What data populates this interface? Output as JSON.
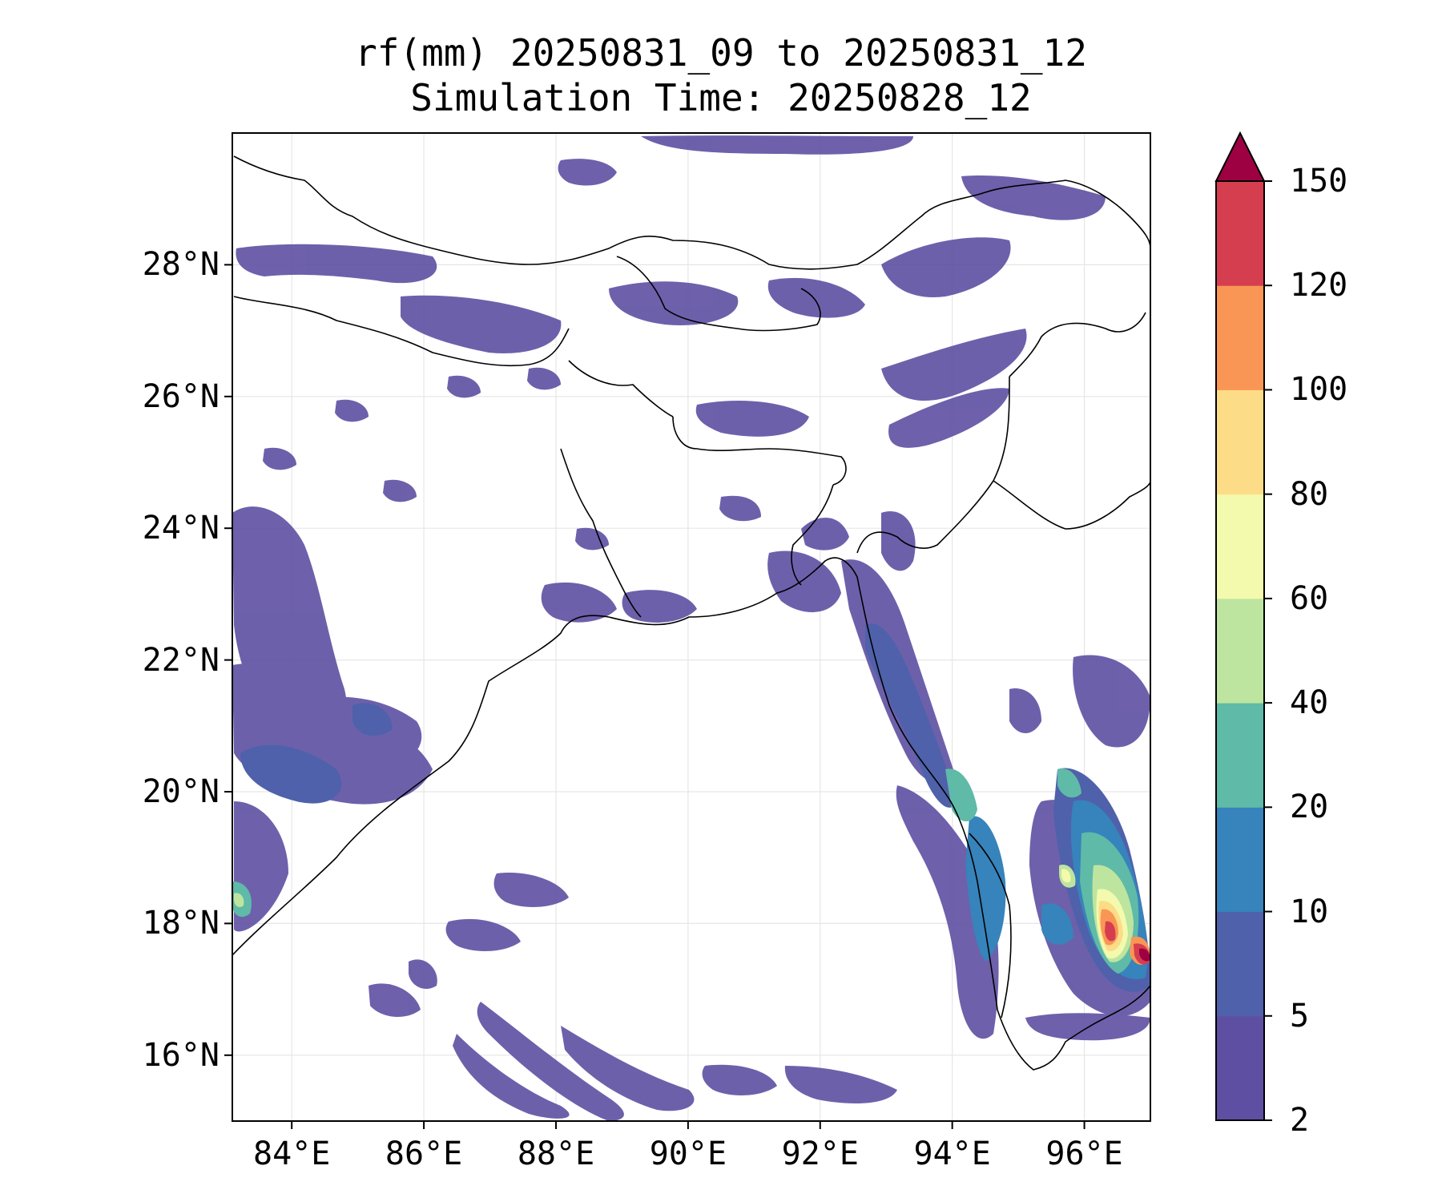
{
  "title": {
    "line1": "rf(mm) 20250831_09 to 20250831_12",
    "line2": "Simulation Time: 20250828_12"
  },
  "map": {
    "extent": {
      "lon": [
        83.1,
        97.0
      ],
      "lat": [
        15.0,
        30.0
      ]
    },
    "lon_ticks": [
      "84°E",
      "86°E",
      "88°E",
      "90°E",
      "92°E",
      "94°E",
      "96°E"
    ],
    "lat_ticks": [
      "16°N",
      "18°N",
      "20°N",
      "22°N",
      "24°N",
      "26°N",
      "28°N"
    ],
    "lon_tick_values": [
      84,
      86,
      88,
      90,
      92,
      94,
      96
    ],
    "lat_tick_values": [
      16,
      18,
      20,
      22,
      24,
      26,
      28
    ],
    "gridlines": true,
    "coastlines": true,
    "borders": true
  },
  "colorbar": {
    "levels": [
      "2",
      "5",
      "10",
      "20",
      "40",
      "60",
      "80",
      "100",
      "120",
      "150"
    ],
    "colors": [
      "#5e4fa2",
      "#4f61aa",
      "#3783bb",
      "#5fbaa8",
      "#bde5a0",
      "#f3faad",
      "#fddc87",
      "#f99655",
      "#d53e4f",
      "#9e0142"
    ],
    "extend": "max"
  }
}
